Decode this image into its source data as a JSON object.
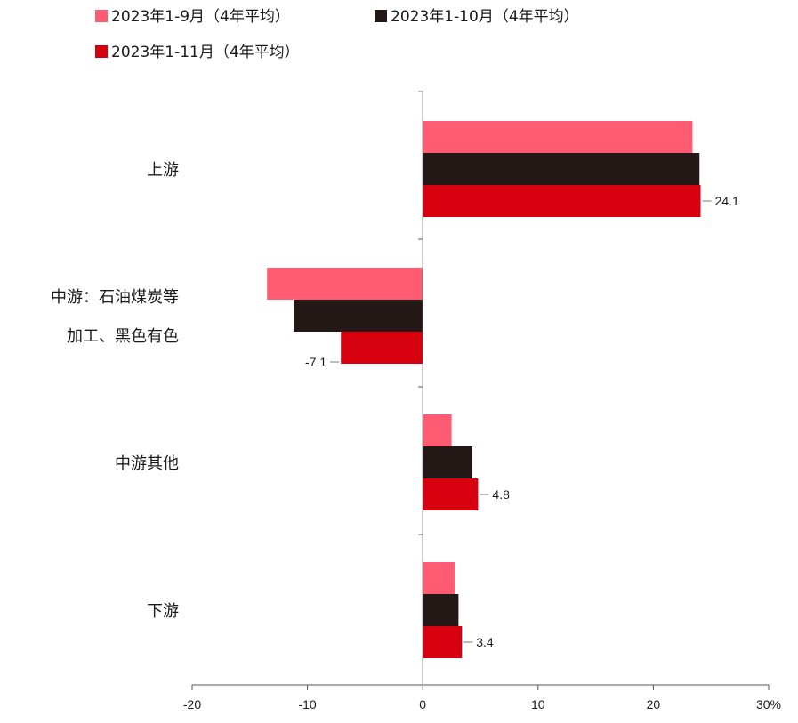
{
  "chart_data": {
    "type": "bar",
    "orientation": "horizontal",
    "categories": [
      [
        "上游"
      ],
      [
        "中游：石油煤炭等",
        "加工、黑色有色"
      ],
      [
        "中游其他"
      ],
      [
        "下游"
      ]
    ],
    "series": [
      {
        "name": "2023年1-9月（4年平均）",
        "color": "#ff5c73",
        "values": [
          23.4,
          -13.5,
          2.5,
          2.8
        ]
      },
      {
        "name": "2023年1-10月（4年平均）",
        "color": "#231815",
        "values": [
          24.0,
          -11.2,
          4.3,
          3.1
        ]
      },
      {
        "name": "2023年1-11月（4年平均）",
        "color": "#d7000f",
        "values": [
          24.1,
          -7.1,
          4.8,
          3.4
        ]
      }
    ],
    "data_labels": [
      "24.1",
      "-7.1",
      "4.8",
      "3.4"
    ],
    "xlim": [
      -20,
      30
    ],
    "xticks": [
      "-20",
      "-10",
      "0",
      "10",
      "20",
      "30%"
    ],
    "legend_position": "top"
  }
}
